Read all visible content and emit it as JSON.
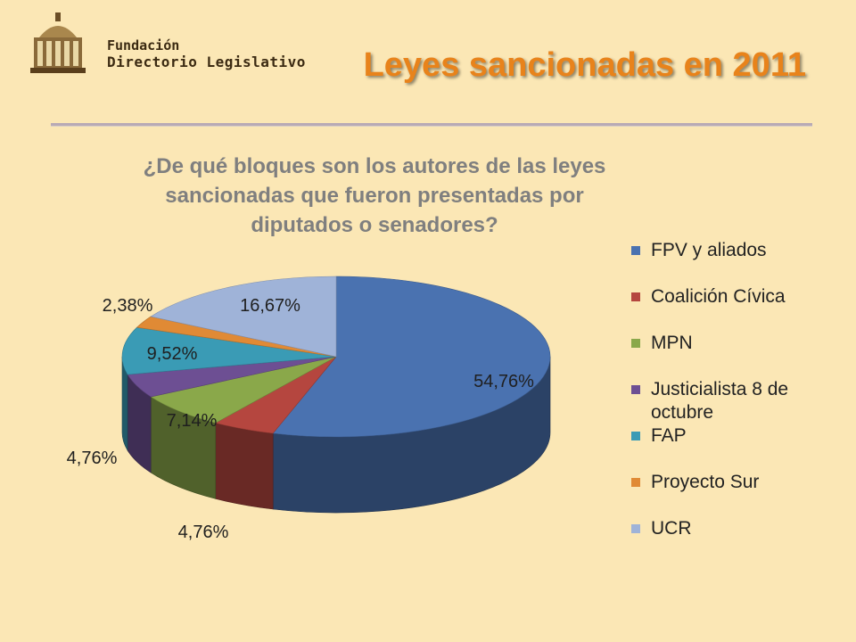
{
  "header": {
    "logo_line1": "Fundación",
    "logo_line2": "Directorio Legislativo",
    "title": "Leyes sancionadas en 2011"
  },
  "chart_data": {
    "type": "pie",
    "title": "¿De qué bloques son los autores de las leyes sancionadas que fueron presentadas por diputados o senadores?",
    "value_unit": "%",
    "legend_position": "right",
    "slices": [
      {
        "name": "FPV y aliados",
        "value": 54.76,
        "label": "54,76%",
        "color": "#4a72b0"
      },
      {
        "name": "Coalición Cívica",
        "value": 4.76,
        "label": "4,76%",
        "color": "#b5463f"
      },
      {
        "name": "MPN",
        "value": 7.14,
        "label": "7,14%",
        "color": "#8aa84a"
      },
      {
        "name": "Justicialista 8 de octubre",
        "value": 4.76,
        "label": "4,76%",
        "color": "#6d4f93"
      },
      {
        "name": "FAP",
        "value": 9.52,
        "label": "9,52%",
        "color": "#3a9bb5"
      },
      {
        "name": "Proyecto Sur",
        "value": 2.38,
        "label": "2,38%",
        "color": "#e08a35"
      },
      {
        "name": "UCR",
        "value": 16.67,
        "label": "16,67%",
        "color": "#9fb3d8"
      }
    ]
  }
}
